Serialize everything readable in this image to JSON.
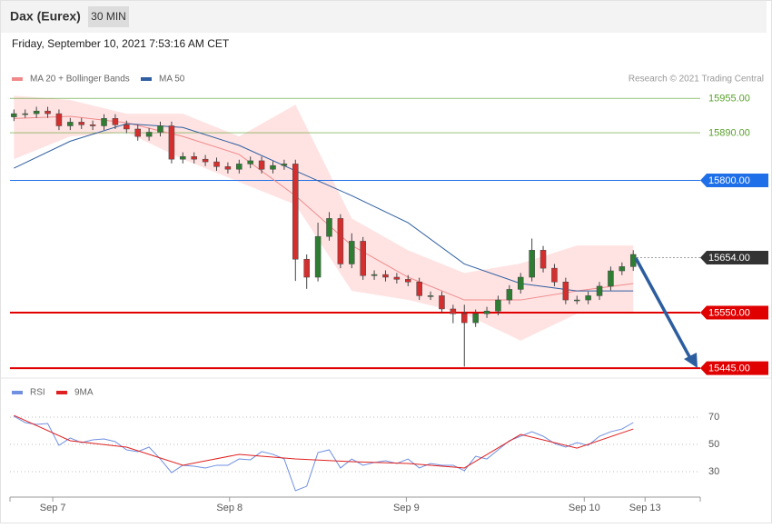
{
  "chart_data": {
    "type": "candlestick",
    "title": "Dax (Eurex)",
    "timeframe": "30 MIN",
    "subtitle": "Friday, September 10, 2021 7:53:16 AM CET",
    "credit": "Research © 2021 Trading Central",
    "xlim": [
      -0.35,
      60.95
    ],
    "xticks": [
      {
        "value": 3.45,
        "label": "Sep 7"
      },
      {
        "value": 19.15,
        "label": "Sep 8"
      },
      {
        "value": 34.85,
        "label": "Sep 9"
      },
      {
        "value": 50.65,
        "label": "Sep 10"
      },
      {
        "value": 56.05,
        "label": "Sep 13"
      }
    ],
    "ylim": [
      15435,
      16000
    ],
    "ohlc": {
      "up_color": "#2e7d32",
      "down_color": "#d32f2f",
      "open": [
        15920,
        15926,
        15926,
        15931,
        15926,
        15903,
        15910,
        15905,
        15903,
        15917,
        15905,
        15897,
        15883,
        15891,
        15903,
        15840,
        15845,
        15840,
        15835,
        15826,
        15821,
        15831,
        15837,
        15821,
        15828,
        15831,
        15651,
        15617,
        15694,
        15728,
        15642,
        15685,
        15620,
        15622,
        15617,
        15613,
        15608,
        15582,
        15582,
        15557,
        15548,
        15531,
        15548,
        15553,
        15574,
        15594,
        15617,
        15668,
        15634,
        15608,
        15574,
        15574,
        15582,
        15600,
        15629,
        15637
      ],
      "high": [
        15934,
        15934,
        15939,
        15939,
        15934,
        15918,
        15918,
        15913,
        15925,
        15925,
        15913,
        15905,
        15899,
        15911,
        15911,
        15853,
        15853,
        15848,
        15843,
        15834,
        15839,
        15845,
        15845,
        15836,
        15839,
        15839,
        15660,
        15720,
        15740,
        15736,
        15700,
        15693,
        15630,
        15630,
        15625,
        15621,
        15616,
        15590,
        15590,
        15565,
        15565,
        15556,
        15561,
        15582,
        15602,
        15625,
        15690,
        15676,
        15642,
        15616,
        15582,
        15590,
        15608,
        15637,
        15645,
        15668
      ],
      "low": [
        15912,
        15918,
        15918,
        15918,
        15895,
        15895,
        15897,
        15895,
        15895,
        15897,
        15889,
        15875,
        15875,
        15883,
        15832,
        15832,
        15832,
        15827,
        15818,
        15813,
        15813,
        15823,
        15813,
        15813,
        15820,
        15610,
        15595,
        15609,
        15686,
        15634,
        15634,
        15612,
        15612,
        15609,
        15605,
        15600,
        15574,
        15574,
        15549,
        15530,
        15448,
        15523,
        15540,
        15545,
        15566,
        15586,
        15609,
        15626,
        15600,
        15566,
        15566,
        15566,
        15574,
        15592,
        15621,
        15629
      ],
      "close": [
        15926,
        15926,
        15931,
        15926,
        15903,
        15910,
        15905,
        15903,
        15917,
        15905,
        15897,
        15883,
        15891,
        15903,
        15840,
        15845,
        15840,
        15835,
        15826,
        15821,
        15831,
        15837,
        15821,
        15828,
        15831,
        15651,
        15617,
        15694,
        15728,
        15642,
        15685,
        15620,
        15622,
        15617,
        15613,
        15608,
        15582,
        15582,
        15557,
        15548,
        15531,
        15548,
        15553,
        15574,
        15594,
        15617,
        15668,
        15634,
        15608,
        15574,
        15574,
        15582,
        15600,
        15629,
        15637,
        15660
      ]
    },
    "indicators": {
      "x": [
        0,
        5,
        10,
        15,
        20,
        25,
        30,
        35,
        40,
        45,
        50,
        55
      ],
      "series": [
        {
          "name": "MA 20 + Bollinger Bands",
          "color": "#f08a8a",
          "band_color": "#ffdcdc",
          "values": [
            15917,
            15921,
            15909,
            15883,
            15849,
            15771,
            15677,
            15617,
            15574,
            15574,
            15591,
            15605
          ],
          "upper": [
            15960,
            15952,
            15926,
            15926,
            15883,
            15943,
            15728,
            15668,
            15625,
            15643,
            15677,
            15677
          ],
          "lower": [
            15840,
            15883,
            15891,
            15840,
            15797,
            15754,
            15591,
            15574,
            15548,
            15497,
            15548,
            15548
          ]
        },
        {
          "name": "MA 50",
          "color": "#2f5fa0",
          "values": [
            15823,
            15874,
            15907,
            15900,
            15866,
            15818,
            15771,
            15720,
            15642,
            15605,
            15591,
            15591
          ]
        }
      ]
    },
    "levels": [
      {
        "value": 15955,
        "label": "15955.00",
        "color": "#5aa02c",
        "width": 0.6,
        "dash": false,
        "boxed": false
      },
      {
        "value": 15890,
        "label": "15890.00",
        "color": "#5aa02c",
        "width": 0.6,
        "dash": false,
        "boxed": false
      },
      {
        "value": 15800,
        "label": "15800.00",
        "color": "#1e6fe8",
        "width": 1,
        "dash": false,
        "boxed": true
      },
      {
        "value": 15654,
        "label": "15654.00",
        "color": "#333333",
        "width": 0.8,
        "dash": true,
        "boxed": true
      },
      {
        "value": 15550,
        "label": "15550.00",
        "color": "#e00000",
        "width": 2,
        "dash": false,
        "boxed": true
      },
      {
        "value": 15445,
        "label": "15445.00",
        "color": "#e00000",
        "width": 2,
        "dash": false,
        "boxed": true
      }
    ],
    "rsi": {
      "ylim": [
        13,
        83
      ],
      "yticks": [
        70,
        50,
        30
      ],
      "series": [
        {
          "name": "RSI",
          "color": "#6f8fe0",
          "values": [
            70.7,
            66,
            64.7,
            65.3,
            49.3,
            54.7,
            51.3,
            53.3,
            54,
            52,
            46,
            44.7,
            48,
            39.3,
            29.3,
            34.7,
            34,
            32.7,
            34.7,
            34.7,
            39.3,
            38.7,
            44.7,
            42.7,
            39.3,
            16,
            19.3,
            44,
            46,
            32.7,
            39.3,
            34.7,
            36.7,
            38,
            36,
            39.3,
            32.7,
            36,
            34.7,
            34.7,
            30.7,
            41.3,
            39.3,
            46,
            52.7,
            56,
            59.3,
            56,
            50.7,
            48,
            51.3,
            49.3,
            56,
            59.3,
            61.3,
            66
          ]
        },
        {
          "name": "9MA",
          "color": "#e02020",
          "x": [
            0,
            5,
            10,
            15,
            20,
            25,
            30,
            35,
            40,
            45,
            50,
            55
          ],
          "values": [
            71.3,
            52.7,
            48,
            34.7,
            42.7,
            39.3,
            37.3,
            36,
            32.7,
            57.3,
            47.3,
            61.3
          ]
        }
      ]
    }
  }
}
